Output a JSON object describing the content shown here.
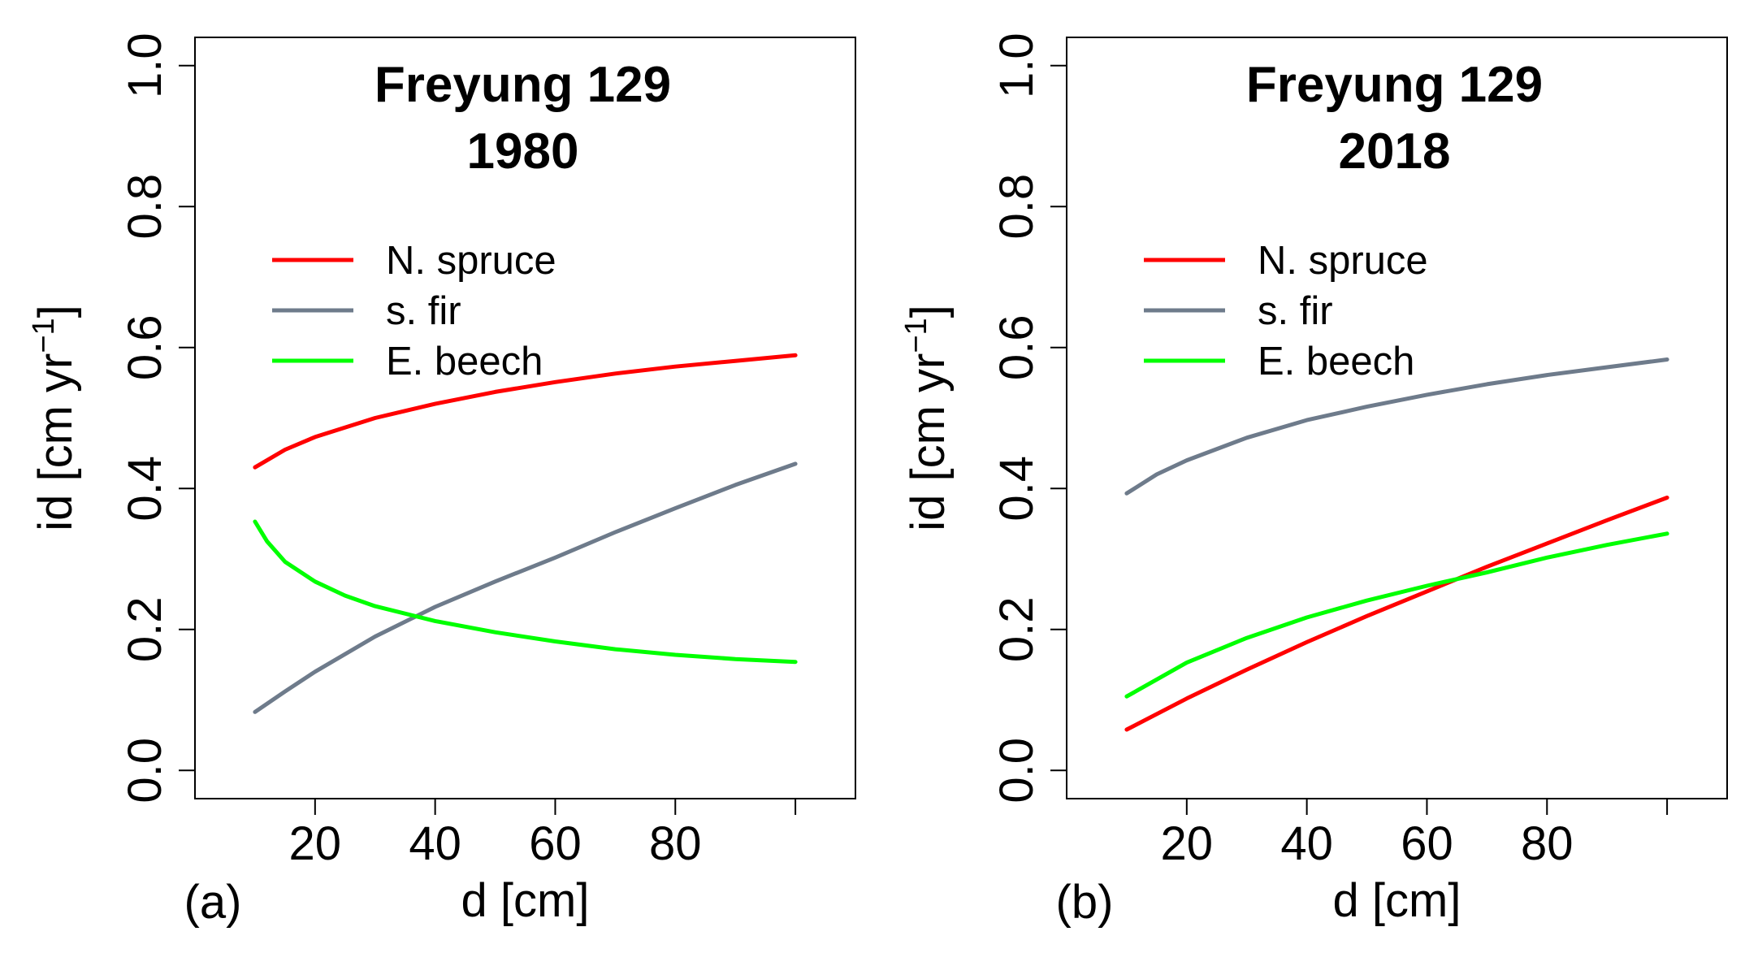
{
  "chart_data": [
    {
      "type": "line",
      "panel_label": "(a)",
      "title_lines": [
        "Freyung 129",
        "1980"
      ],
      "xlabel": "d [cm]",
      "ylabel": "id [cm yr",
      "ylabel_superscript": "−1",
      "ylabel_close": "]",
      "xlim": [
        0,
        110
      ],
      "ylim": [
        -0.04,
        1.04
      ],
      "xticks": [
        20,
        40,
        60,
        80,
        100
      ],
      "xtick_labels": [
        "20",
        "40",
        "60",
        "80",
        ""
      ],
      "yticks": [
        0.0,
        0.2,
        0.4,
        0.6,
        0.8,
        1.0
      ],
      "ytick_labels": [
        "0.0",
        "0.2",
        "0.4",
        "0.6",
        "0.8",
        "1.0"
      ],
      "legend_position": "top-left",
      "series": [
        {
          "name": "N. spruce",
          "color": "#ff0000",
          "x": [
            10,
            15,
            20,
            30,
            40,
            50,
            60,
            70,
            80,
            90,
            100
          ],
          "y": [
            0.43,
            0.455,
            0.473,
            0.5,
            0.52,
            0.537,
            0.551,
            0.563,
            0.573,
            0.581,
            0.589
          ]
        },
        {
          "name": "s. fir",
          "color": "#6e7b8b",
          "x": [
            10,
            15,
            20,
            30,
            40,
            50,
            60,
            70,
            80,
            90,
            100
          ],
          "y": [
            0.083,
            0.112,
            0.14,
            0.19,
            0.232,
            0.268,
            0.302,
            0.338,
            0.372,
            0.405,
            0.435
          ]
        },
        {
          "name": "E. beech",
          "color": "#00ff00",
          "x": [
            10,
            12,
            15,
            20,
            25,
            30,
            40,
            50,
            60,
            70,
            80,
            90,
            100
          ],
          "y": [
            0.353,
            0.325,
            0.296,
            0.268,
            0.248,
            0.233,
            0.212,
            0.196,
            0.183,
            0.172,
            0.164,
            0.158,
            0.154
          ]
        }
      ]
    },
    {
      "type": "line",
      "panel_label": "(b)",
      "title_lines": [
        "Freyung 129",
        "2018"
      ],
      "xlabel": "d [cm]",
      "ylabel": "id [cm yr",
      "ylabel_superscript": "−1",
      "ylabel_close": "]",
      "xlim": [
        0,
        110
      ],
      "ylim": [
        -0.04,
        1.04
      ],
      "xticks": [
        20,
        40,
        60,
        80,
        100
      ],
      "xtick_labels": [
        "20",
        "40",
        "60",
        "80",
        ""
      ],
      "yticks": [
        0.0,
        0.2,
        0.4,
        0.6,
        0.8,
        1.0
      ],
      "ytick_labels": [
        "0.0",
        "0.2",
        "0.4",
        "0.6",
        "0.8",
        "1.0"
      ],
      "legend_position": "top-left",
      "series": [
        {
          "name": "N. spruce",
          "color": "#ff0000",
          "x": [
            10,
            20,
            30,
            40,
            50,
            60,
            70,
            80,
            90,
            100
          ],
          "y": [
            0.058,
            0.102,
            0.143,
            0.182,
            0.219,
            0.254,
            0.289,
            0.322,
            0.355,
            0.387
          ]
        },
        {
          "name": "s. fir",
          "color": "#6e7b8b",
          "x": [
            10,
            15,
            20,
            30,
            40,
            50,
            60,
            70,
            80,
            90,
            100
          ],
          "y": [
            0.393,
            0.42,
            0.44,
            0.472,
            0.497,
            0.516,
            0.533,
            0.548,
            0.561,
            0.572,
            0.583
          ]
        },
        {
          "name": "E. beech",
          "color": "#00ff00",
          "x": [
            10,
            20,
            30,
            40,
            50,
            60,
            70,
            80,
            90,
            100
          ],
          "y": [
            0.105,
            0.153,
            0.188,
            0.217,
            0.241,
            0.262,
            0.281,
            0.302,
            0.32,
            0.336
          ]
        }
      ]
    }
  ]
}
